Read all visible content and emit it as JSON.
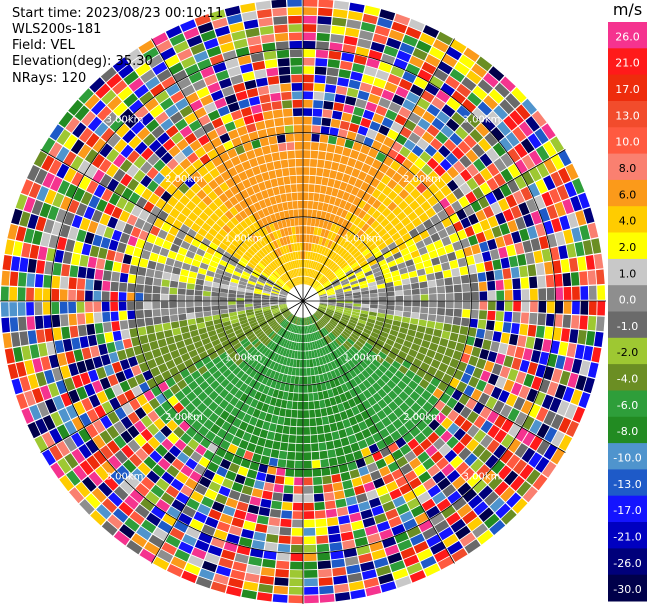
{
  "info": {
    "start_time": "Start time: 2023/08/23 00:10:11",
    "instrument": "WLS200s-181",
    "field": "Field: VEL",
    "elevation": "Elevation(deg): 35.30",
    "nrays": "NRays: 120"
  },
  "chart_data": {
    "type": "heatmap",
    "projection": "polar-ppi",
    "field": "VEL",
    "units": "m/s",
    "n_rays": 120,
    "range_rings_km": [
      1.0,
      2.0,
      3.0
    ],
    "ring_labels": [
      "1.00km",
      "2.00km",
      "3.00km"
    ],
    "max_range_km": 3.6,
    "spokes_deg": [
      0,
      30,
      60,
      90,
      120,
      150,
      180,
      210,
      240,
      270,
      300,
      330
    ],
    "colorbar": {
      "label": "m/s",
      "ticks": [
        "26.0",
        "21.0",
        "17.0",
        "13.0",
        "10.0",
        "8.0",
        "6.0",
        "4.0",
        "2.0",
        "1.0",
        "0.0",
        "-1.0",
        "-2.0",
        "-4.0",
        "-6.0",
        "-8.0",
        "-10.0",
        "-13.0",
        "-17.0",
        "-21.0",
        "-26.0",
        "-30.0"
      ],
      "colors": [
        "#f5338f",
        "#ff1a1a",
        "#ee2c0c",
        "#f24c2c",
        "#ff5a40",
        "#fa8070",
        "#fb9a1a",
        "#ffcc00",
        "#ffff00",
        "#c8c8c8",
        "#8e8e8e",
        "#6a6a6a",
        "#9ec832",
        "#6b8e23",
        "#2e9e3a",
        "#228b22",
        "#4f94cd",
        "#1e5ac8",
        "#1414ff",
        "#0000c0",
        "#00007a",
        "#00004a"
      ]
    },
    "pattern": "Receding velocities 1–8 m/s in the north sector, approaching velocities -1 to -6 m/s in the south sector, near-zero values along the east-west axis, noisy random values beyond ~1.8 km range."
  }
}
